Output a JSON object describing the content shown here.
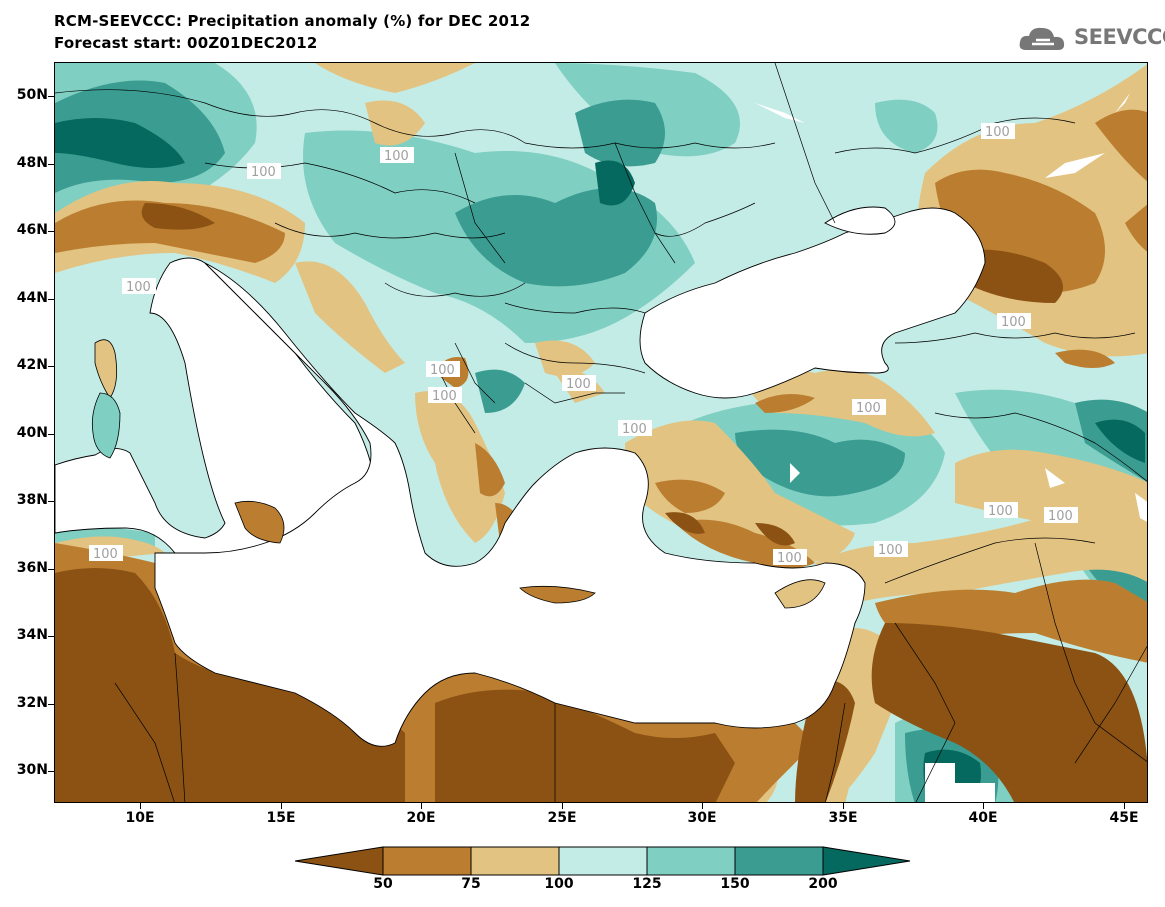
{
  "header": {
    "title": "RCM-SEEVCCC: Precipitation anomaly (%) for DEC 2012",
    "subtitle": "Forecast start: 00Z01DEC2012"
  },
  "logo": {
    "text": "SEEVCCC"
  },
  "axes": {
    "lat_labels": [
      "50N",
      "48N",
      "46N",
      "44N",
      "42N",
      "40N",
      "38N",
      "36N",
      "34N",
      "32N",
      "30N"
    ],
    "lon_labels": [
      "10E",
      "15E",
      "20E",
      "25E",
      "30E",
      "35E",
      "40E",
      "45E"
    ]
  },
  "colorbar": {
    "labels": [
      "50",
      "75",
      "100",
      "125",
      "150",
      "200"
    ],
    "colors": [
      "#8b5214",
      "#bb7e30",
      "#e2c382",
      "#c4ece6",
      "#7fcfc2",
      "#3b9d92",
      "#05695f"
    ]
  },
  "contour_label": "100"
}
